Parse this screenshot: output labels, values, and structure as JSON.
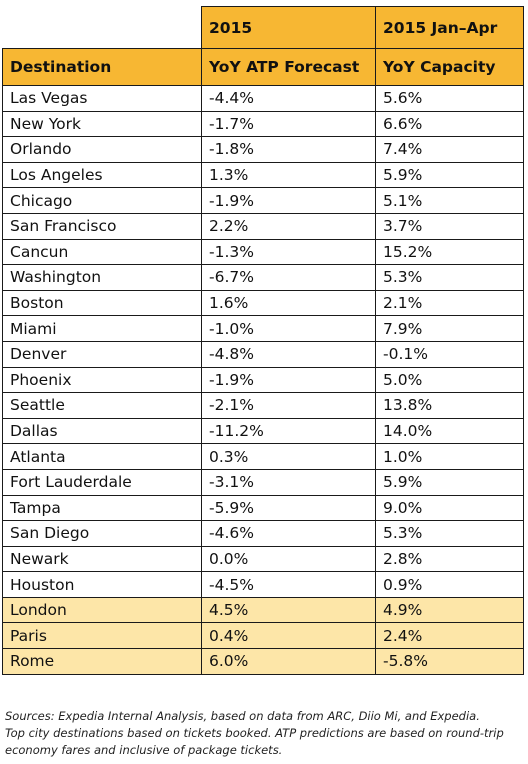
{
  "table": {
    "group_headers": [
      "",
      "2015",
      "2015 Jan–Apr"
    ],
    "column_headers": [
      "Destination",
      "YoY ATP Forecast",
      "YoY Capacity"
    ],
    "rows": [
      [
        "Las Vegas",
        "-4.4%",
        "5.6%"
      ],
      [
        "New York",
        "-1.7%",
        "6.6%"
      ],
      [
        "Orlando",
        "-1.8%",
        "7.4%"
      ],
      [
        "Los Angeles",
        "1.3%",
        "5.9%"
      ],
      [
        "Chicago",
        "-1.9%",
        "5.1%"
      ],
      [
        "San Francisco",
        "2.2%",
        "3.7%"
      ],
      [
        "Cancun",
        "-1.3%",
        "15.2%"
      ],
      [
        "Washington",
        "-6.7%",
        "5.3%"
      ],
      [
        "Boston",
        "1.6%",
        "2.1%"
      ],
      [
        "Miami",
        "-1.0%",
        "7.9%"
      ],
      [
        "Denver",
        "-4.8%",
        "-0.1%"
      ],
      [
        "Phoenix",
        "-1.9%",
        "5.0%"
      ],
      [
        "Seattle",
        "-2.1%",
        "13.8%"
      ],
      [
        "Dallas",
        "-11.2%",
        "14.0%"
      ],
      [
        "Atlanta",
        "0.3%",
        "1.0%"
      ],
      [
        "Fort Lauderdale",
        "-3.1%",
        "5.9%"
      ],
      [
        "Tampa",
        "-5.9%",
        "9.0%"
      ],
      [
        "San Diego",
        "-4.6%",
        "5.3%"
      ],
      [
        "Newark",
        "0.0%",
        "2.8%"
      ],
      [
        "Houston",
        "-4.5%",
        "0.9%"
      ],
      [
        "London",
        "4.5%",
        "4.9%"
      ],
      [
        "Paris",
        "0.4%",
        "2.4%"
      ],
      [
        "Rome",
        "6.0%",
        "-5.8%"
      ]
    ],
    "highlighted_rows": [
      "London",
      "Paris",
      "Rome"
    ],
    "colors": {
      "header": "#f7b733",
      "highlight": "#fde6a8",
      "border": "#1a1a1a"
    }
  },
  "footnote": {
    "line1": "Sources: Expedia Internal Analysis, based on data from ARC, Diio Mi, and Expedia.",
    "line2": "Top city destinations based on tickets booked. ATP predictions are based on round-trip",
    "line3": "economy fares and inclusive of package tickets."
  }
}
